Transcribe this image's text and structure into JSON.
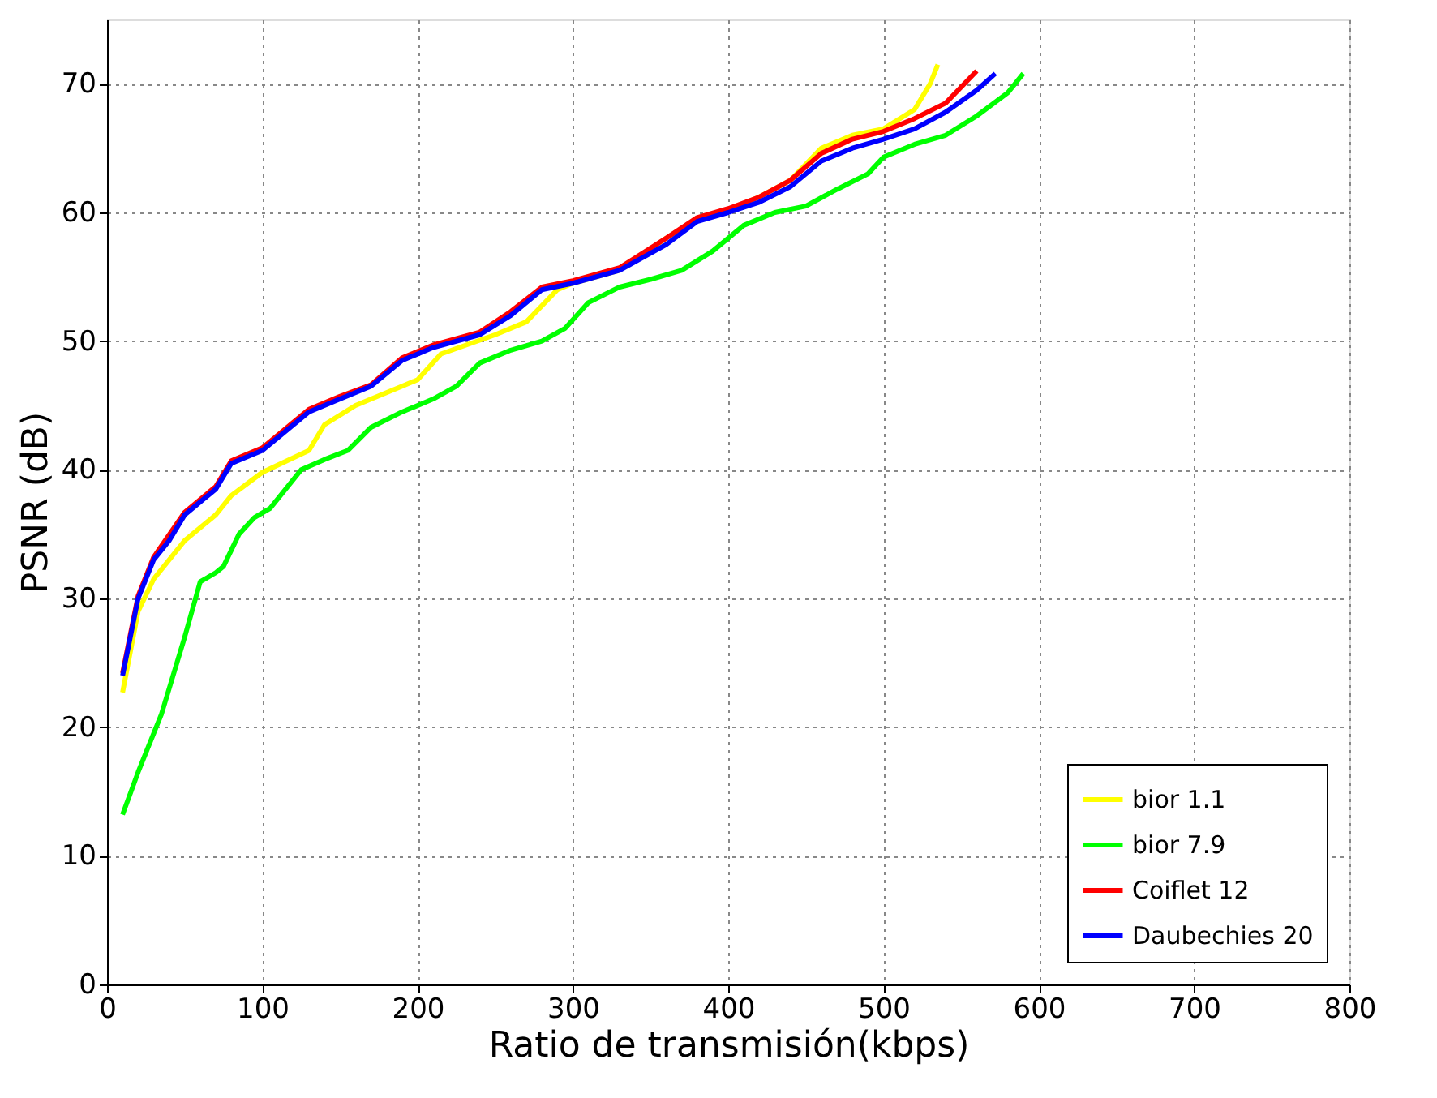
{
  "chart_data": {
    "type": "line",
    "xlabel": "Ratio de transmisión(kbps)",
    "ylabel": "PSNR (dB)",
    "xlim": [
      0,
      800
    ],
    "ylim": [
      0,
      75
    ],
    "xticks": [
      0,
      100,
      200,
      300,
      400,
      500,
      600,
      700,
      800
    ],
    "yticks": [
      0,
      10,
      20,
      30,
      40,
      50,
      60,
      70
    ],
    "grid": true,
    "legend": "bottom right",
    "line_style": "solid",
    "marker": "none",
    "series": [
      {
        "name": "bior 1.1",
        "color": "#ffff00",
        "x": [
          10,
          20,
          30,
          50,
          70,
          80,
          100,
          130,
          140,
          160,
          190,
          200,
          215,
          250,
          270,
          290,
          300,
          330,
          360,
          380,
          400,
          420,
          440,
          460,
          480,
          500,
          520,
          530,
          535
        ],
        "values": [
          22.7,
          29,
          31.5,
          34.5,
          36.5,
          38,
          39.8,
          41.5,
          43.5,
          45,
          46.5,
          47,
          49,
          50.5,
          51.5,
          54,
          54.5,
          55.5,
          58,
          59.5,
          60.2,
          61.2,
          62.5,
          65,
          66,
          66.5,
          68,
          70,
          71.5
        ]
      },
      {
        "name": "bior 7.9",
        "color": "#00ff00",
        "x": [
          10,
          20,
          35,
          50,
          60,
          70,
          75,
          85,
          95,
          105,
          115,
          125,
          140,
          155,
          170,
          190,
          210,
          225,
          240,
          260,
          280,
          295,
          310,
          330,
          350,
          370,
          390,
          410,
          430,
          450,
          470,
          490,
          500,
          520,
          540,
          560,
          580,
          590
        ],
        "values": [
          13.2,
          16.5,
          21,
          27,
          31.3,
          32,
          32.5,
          35,
          36.3,
          37,
          38.5,
          40,
          40.8,
          41.5,
          43.3,
          44.5,
          45.5,
          46.5,
          48.3,
          49.3,
          50,
          51,
          53,
          54.2,
          54.8,
          55.5,
          57,
          59,
          60,
          60.5,
          61.8,
          63,
          64.3,
          65.3,
          66,
          67.5,
          69.3,
          70.8
        ]
      },
      {
        "name": "Coiflet 12",
        "color": "#ff0000",
        "x": [
          10,
          20,
          30,
          50,
          70,
          80,
          100,
          110,
          130,
          150,
          170,
          190,
          210,
          240,
          260,
          280,
          300,
          330,
          360,
          380,
          400,
          420,
          440,
          460,
          480,
          500,
          520,
          540,
          560
        ],
        "values": [
          24.2,
          30.2,
          33.2,
          36.7,
          38.7,
          40.7,
          41.7,
          42.7,
          44.7,
          45.7,
          46.6,
          48.7,
          49.7,
          50.7,
          52.3,
          54.2,
          54.7,
          55.7,
          58,
          59.6,
          60.3,
          61.2,
          62.5,
          64.6,
          65.7,
          66.3,
          67.3,
          68.5,
          71
        ]
      },
      {
        "name": "Daubechies 20",
        "color": "#0000ff",
        "x": [
          10,
          20,
          30,
          40,
          50,
          70,
          80,
          100,
          110,
          130,
          150,
          170,
          190,
          210,
          240,
          260,
          280,
          300,
          330,
          360,
          380,
          400,
          420,
          440,
          460,
          480,
          500,
          520,
          540,
          560,
          572
        ],
        "values": [
          24,
          30,
          33,
          34.5,
          36.5,
          38.5,
          40.5,
          41.5,
          42.5,
          44.5,
          45.5,
          46.5,
          48.5,
          49.5,
          50.5,
          52,
          54,
          54.5,
          55.5,
          57.5,
          59.3,
          60,
          60.8,
          62,
          64,
          65,
          65.7,
          66.5,
          67.8,
          69.5,
          70.8
        ]
      }
    ]
  }
}
